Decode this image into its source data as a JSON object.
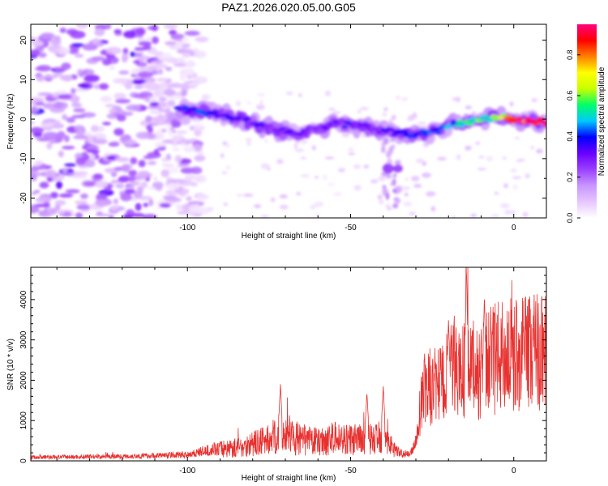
{
  "title": "PAZ1.2026.020.05.00.G05",
  "chart_data": [
    {
      "type": "heatmap",
      "name": "spectrogram",
      "xlabel": "Height of straight line (km)",
      "ylabel": "Frequency (Hz)",
      "xlim": [
        -148,
        10
      ],
      "ylim": [
        -25,
        24
      ],
      "xticks": [
        -100,
        -50,
        0
      ],
      "yticks": [
        -20,
        -10,
        0,
        10,
        20
      ],
      "colorbar": {
        "label": "Normalized spectral amplitude",
        "range": [
          0,
          0.95
        ],
        "ticks": [
          0.0,
          0.2,
          0.4,
          0.6,
          0.8
        ],
        "colors": [
          "#ffffff",
          "#e7c6ff",
          "#c896ff",
          "#9b40ff",
          "#6a00ff",
          "#0000ff",
          "#00c8ff",
          "#00ff66",
          "#c8ff00",
          "#ffff00",
          "#ff8000",
          "#ff0000",
          "#ff0080"
        ]
      },
      "ridge": [
        {
          "x": -103,
          "f": 2.5,
          "amp": 0.35
        },
        {
          "x": -97,
          "f": 2.0,
          "amp": 0.4
        },
        {
          "x": -92,
          "f": 1.5,
          "amp": 0.35
        },
        {
          "x": -85,
          "f": 0.5,
          "amp": 0.35
        },
        {
          "x": -78,
          "f": -1.5,
          "amp": 0.3
        },
        {
          "x": -72,
          "f": -3.0,
          "amp": 0.3
        },
        {
          "x": -66,
          "f": -3.5,
          "amp": 0.3
        },
        {
          "x": -60,
          "f": -2.5,
          "amp": 0.28
        },
        {
          "x": -55,
          "f": -1.0,
          "amp": 0.3
        },
        {
          "x": -50,
          "f": -1.5,
          "amp": 0.32
        },
        {
          "x": -45,
          "f": -2.0,
          "amp": 0.3
        },
        {
          "x": -40,
          "f": -3.0,
          "amp": 0.3
        },
        {
          "x": -37,
          "f": -12.5,
          "amp": 0.25
        },
        {
          "x": -30,
          "f": -4.0,
          "amp": 0.38
        },
        {
          "x": -25,
          "f": -3.5,
          "amp": 0.4
        },
        {
          "x": -20,
          "f": -2.0,
          "amp": 0.45
        },
        {
          "x": -15,
          "f": -1.0,
          "amp": 0.5
        },
        {
          "x": -10,
          "f": 0.0,
          "amp": 0.55
        },
        {
          "x": -5,
          "f": 0.5,
          "amp": 0.6
        },
        {
          "x": 0,
          "f": 0.0,
          "amp": 0.85
        },
        {
          "x": 5,
          "f": -0.5,
          "amp": 0.95
        },
        {
          "x": 9,
          "f": -0.5,
          "amp": 0.9
        }
      ]
    },
    {
      "type": "line",
      "name": "snr",
      "xlabel": "Height of straight line (km)",
      "ylabel": "SNR (10 * v/v)",
      "xlim": [
        -148,
        10
      ],
      "ylim": [
        0,
        4800
      ],
      "xticks": [
        -100,
        -50,
        0
      ],
      "yticks": [
        0,
        1000,
        2000,
        3000,
        4000
      ],
      "color": "#e8312f",
      "envelope": {
        "x": [
          -148,
          -120,
          -110,
          -100,
          -95,
          -90,
          -85,
          -80,
          -75,
          -72,
          -70,
          -65,
          -60,
          -55,
          -50,
          -45,
          -40,
          -35,
          -32,
          -30,
          -28,
          -25,
          -22,
          -20,
          -18,
          -15,
          -12,
          -10,
          -8,
          -5,
          -3,
          0,
          3,
          6,
          10
        ],
        "y": [
          90,
          110,
          130,
          160,
          240,
          300,
          330,
          420,
          520,
          680,
          700,
          500,
          480,
          560,
          520,
          520,
          560,
          200,
          150,
          450,
          1700,
          1850,
          1900,
          2100,
          2350,
          2250,
          2250,
          2200,
          2450,
          2550,
          2600,
          2650,
          2700,
          2750,
          2800
        ]
      },
      "peaks": [
        {
          "x": -71.5,
          "y": 1900
        },
        {
          "x": -45,
          "y": 1700
        },
        {
          "x": -40,
          "y": 1850
        },
        {
          "x": -20,
          "y": 3550
        },
        {
          "x": -14.5,
          "y": 4800
        },
        {
          "x": -9,
          "y": 4150
        },
        {
          "x": 3,
          "y": 3400
        }
      ]
    }
  ]
}
